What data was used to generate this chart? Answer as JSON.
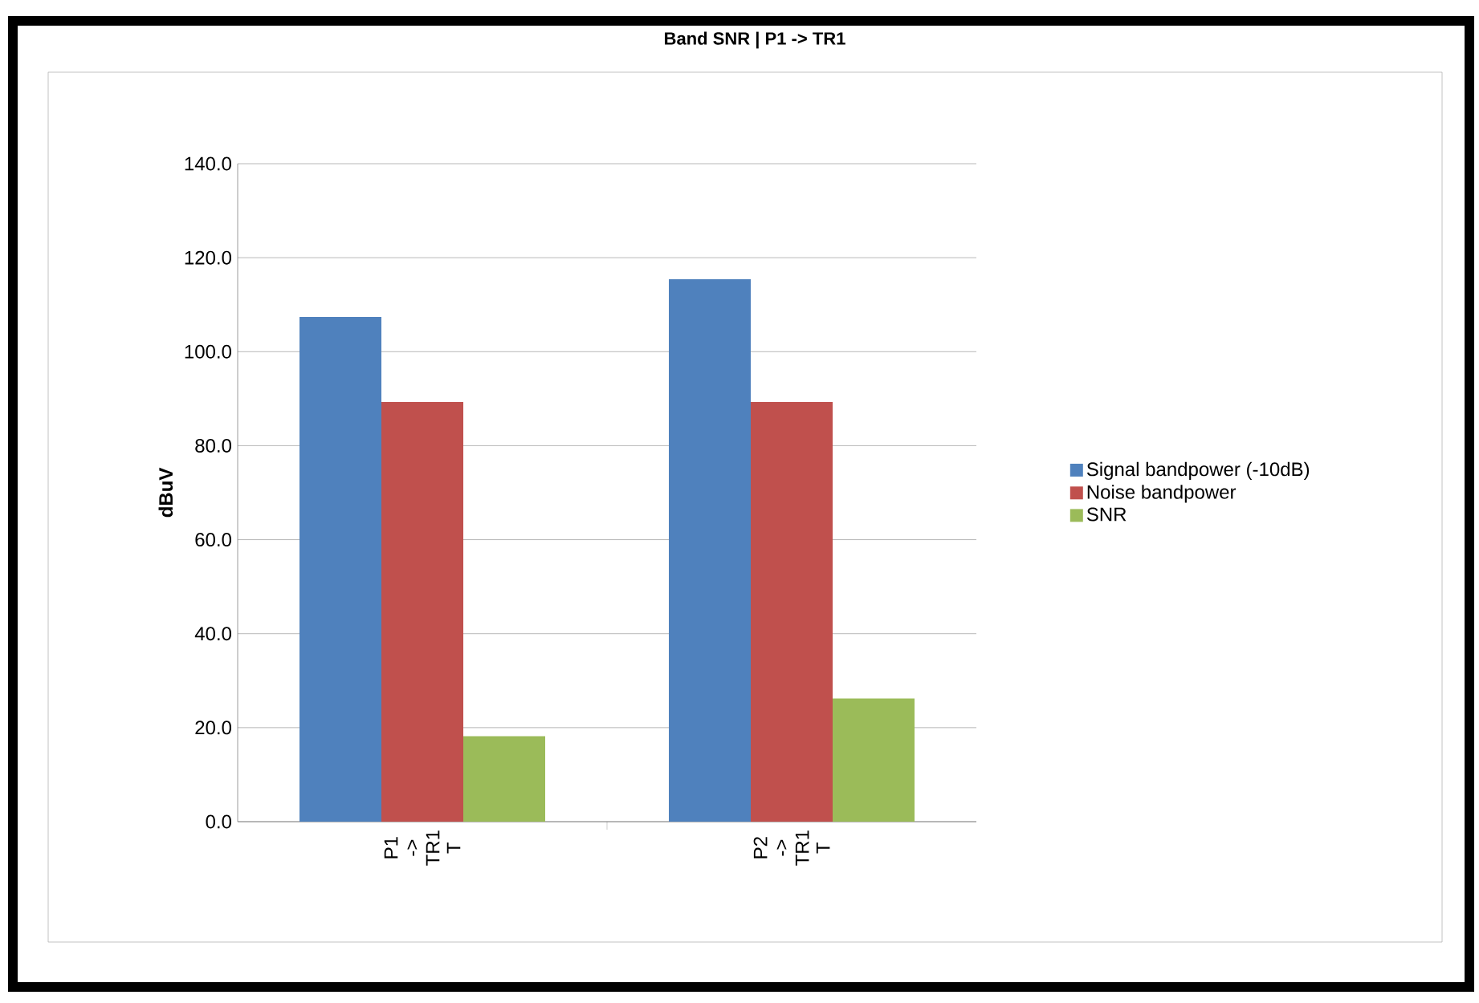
{
  "chart_data": {
    "type": "bar",
    "title": "Band SNR | P1 -> TR1",
    "ylabel": "dBuV",
    "categories": [
      "P1 -> TR1 T",
      "P2 -> TR1 T"
    ],
    "series": [
      {
        "name": "Signal bandpower (-10dB)",
        "color": "#4f81bd",
        "values": [
          107.4,
          115.4
        ]
      },
      {
        "name": "Noise bandpower",
        "color": "#c0504d",
        "values": [
          89.3,
          89.3
        ]
      },
      {
        "name": "SNR",
        "color": "#9bbb59",
        "values": [
          18.2,
          26.2
        ]
      }
    ],
    "ylim": [
      0,
      140
    ],
    "yticks": [
      {
        "value": 0,
        "label": "0.0"
      },
      {
        "value": 20,
        "label": "20.0"
      },
      {
        "value": 40,
        "label": "40.0"
      },
      {
        "value": 60,
        "label": "60.0"
      },
      {
        "value": 80,
        "label": "80.0"
      },
      {
        "value": 100,
        "label": "100.0"
      },
      {
        "value": 120,
        "label": "120.0"
      },
      {
        "value": 140,
        "label": "140.0"
      }
    ],
    "grid": "y",
    "legend": "right"
  }
}
